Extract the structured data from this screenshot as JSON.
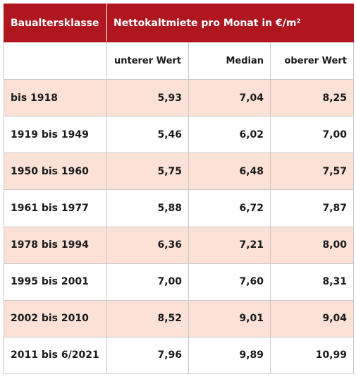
{
  "header": {
    "col1": "Baualtersklasse",
    "col2": "Nettokaltmiete pro Monat in €/m²"
  },
  "subheader": {
    "low": "unterer Wert",
    "median": "Median",
    "high": "oberer Wert"
  },
  "rows": [
    {
      "klasse": "bis 1918",
      "low": "5,93",
      "median": "7,04",
      "high": "8,25"
    },
    {
      "klasse": "1919 bis 1949",
      "low": "5,46",
      "median": "6,02",
      "high": "7,00"
    },
    {
      "klasse": "1950 bis 1960",
      "low": "5,75",
      "median": "6,48",
      "high": "7,57"
    },
    {
      "klasse": "1961 bis 1977",
      "low": "5,88",
      "median": "6,72",
      "high": "7,87"
    },
    {
      "klasse": "1978 bis 1994",
      "low": "6,36",
      "median": "7,21",
      "high": "8,00"
    },
    {
      "klasse": "1995 bis 2001",
      "low": "7,00",
      "median": "7,60",
      "high": "8,31"
    },
    {
      "klasse": "2002 bis 2010",
      "low": "8,52",
      "median": "9,01",
      "high": "9,04"
    },
    {
      "klasse": "2011 bis 6/2021",
      "low": "7,96",
      "median": "9,89",
      "high": "10,99"
    }
  ],
  "colors": {
    "header_bg": "#b0161f",
    "shade_bg": "#fbe1d6"
  }
}
